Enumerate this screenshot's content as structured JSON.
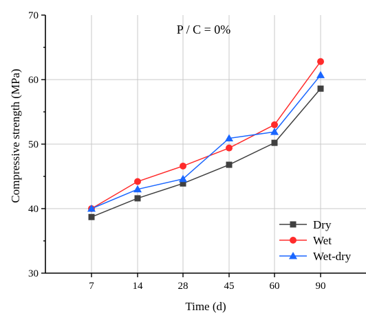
{
  "chart_data": {
    "type": "line",
    "annotation": "P / C = 0%",
    "xlabel": "Time (d)",
    "ylabel": "Compressive strength (MPa)",
    "categories": [
      "7",
      "14",
      "28",
      "45",
      "60",
      "90"
    ],
    "ylim": [
      30,
      70
    ],
    "yticks": [
      "30",
      "40",
      "50",
      "60",
      "70"
    ],
    "grid": true,
    "legend_position": "bottom-right",
    "series": [
      {
        "name": "Dry",
        "marker": "square",
        "color": "#404040",
        "values": [
          38.7,
          41.6,
          43.9,
          46.8,
          50.2,
          58.6
        ]
      },
      {
        "name": "Wet",
        "marker": "circle",
        "color": "#ff2b2b",
        "values": [
          40.0,
          44.2,
          46.6,
          49.4,
          53.0,
          62.8
        ]
      },
      {
        "name": "Wet-dry",
        "marker": "triangle",
        "color": "#1a66ff",
        "values": [
          40.0,
          43.0,
          44.6,
          50.9,
          51.9,
          60.7
        ]
      }
    ]
  }
}
